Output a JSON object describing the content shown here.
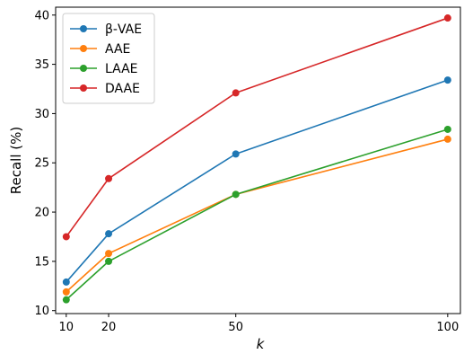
{
  "chart_data": {
    "type": "line",
    "title": "",
    "xlabel": "k",
    "ylabel": "Recall (%)",
    "x": [
      10,
      20,
      50,
      100
    ],
    "xticks": [
      10,
      20,
      50,
      100
    ],
    "yticks": [
      10,
      15,
      20,
      25,
      30,
      35,
      40
    ],
    "xlim": [
      7.5,
      103
    ],
    "ylim": [
      9.7,
      40.8
    ],
    "grid": false,
    "legend_position": "top-left",
    "series": [
      {
        "name": "β-VAE",
        "color": "#1f77b4",
        "values": [
          12.9,
          17.8,
          25.9,
          33.4
        ]
      },
      {
        "name": "AAE",
        "color": "#ff7f0e",
        "values": [
          11.9,
          15.8,
          21.8,
          27.4
        ]
      },
      {
        "name": "LAAE",
        "color": "#2ca02c",
        "values": [
          11.1,
          15.0,
          21.8,
          28.4
        ]
      },
      {
        "name": "DAAE",
        "color": "#d62728",
        "values": [
          17.5,
          23.4,
          32.1,
          39.7
        ]
      }
    ]
  }
}
